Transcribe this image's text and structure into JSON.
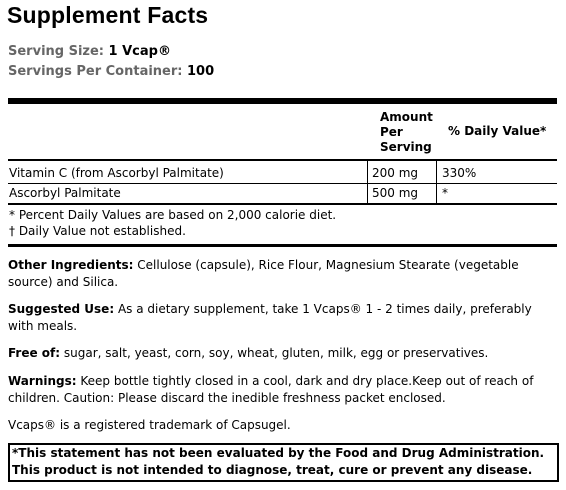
{
  "title": "Supplement Facts",
  "serving": {
    "size_label": "Serving Size:",
    "size_value": "1 Vcap®",
    "per_container_label": "Servings Per Container:",
    "per_container_value": "100"
  },
  "table": {
    "headers": {
      "amount_line1": "Amount",
      "amount_line2": "Per",
      "amount_line3": "Serving",
      "daily_value": "% Daily Value*"
    },
    "rows": [
      {
        "name": "Vitamin C (from Ascorbyl Palmitate)",
        "amount": "200 mg",
        "dv": "330%"
      },
      {
        "name": "Ascorbyl Palmitate",
        "amount": "500 mg",
        "dv": "*"
      }
    ],
    "footnotes": [
      "* Percent Daily Values are based on 2,000 calorie diet.",
      "† Daily Value not established."
    ]
  },
  "sections": {
    "other_ingredients": {
      "label": "Other Ingredients:",
      "text": "Cellulose (capsule), Rice Flour, Magnesium Stearate (vegetable source) and Silica."
    },
    "suggested_use": {
      "label": "Suggested Use:",
      "text": "As a dietary supplement, take 1 Vcaps® 1 - 2 times daily, preferably with meals."
    },
    "free_of": {
      "label": "Free of:",
      "text": "sugar, salt, yeast, corn, soy, wheat, gluten, milk, egg or preservatives."
    },
    "warnings": {
      "label": "Warnings:",
      "text": "Keep bottle tightly closed in a cool, dark and dry place.Keep out of reach of children. Caution: Please discard the inedible freshness packet enclosed."
    },
    "trademark": "Vcaps® is a registered trademark of Capsugel."
  },
  "disclaimer": "*This statement has not been evaluated by the Food and Drug Administration. This product is not intended to diagnose, treat, cure or prevent any disease."
}
